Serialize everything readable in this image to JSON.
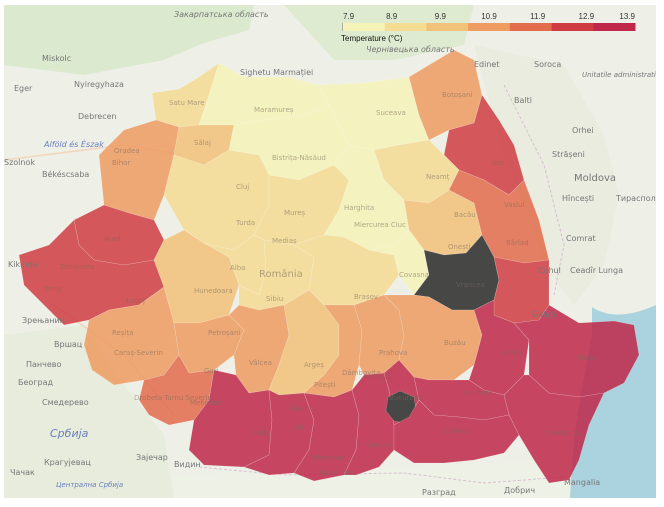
{
  "legend": {
    "title": "Temperature (°C)",
    "ticks": [
      "7.9",
      "8.9",
      "9.9",
      "10.9",
      "11.9",
      "12.9",
      "13.9"
    ],
    "colors": [
      "#f6f3b8",
      "#f5dc93",
      "#f2c27a",
      "#ee9c61",
      "#e36c4c",
      "#cf3d43",
      "#c0284a"
    ]
  },
  "map_labels": {
    "outside": [
      "Закарпатська область",
      "Чернівецька область",
      "Edinet",
      "Soroca",
      "Unitatile administrativ teritoriale din stânga Nistrului",
      "Miskolc",
      "Eger",
      "Nyiregyhaza",
      "Debrecen",
      "Alföld és Észak",
      "Békéscsaba",
      "Szolnok",
      "Kikinda",
      "Зрењанин",
      "Вршац",
      "Панчево",
      "Београд",
      "Смедерево",
      "Србија",
      "Крагујевац",
      "Чачак",
      "Централна Србија",
      "Зајечар",
      "Видин",
      "Разград",
      "Добрич",
      "Mangalia",
      "Balti",
      "Orhei",
      "Strășeni",
      "Moldova",
      "Hîncești",
      "Тираспол",
      "Comrat",
      "Cahul",
      "Ceadîr Lunga",
      "Galați",
      "Sighetu Marmației"
    ],
    "regions": [
      "Satu Mare",
      "Maramureș",
      "Suceava",
      "Botoșani",
      "Bihor",
      "Sălaj",
      "Bistrița-Năsăud",
      "Iași",
      "Cluj",
      "Neamț",
      "Vaslui",
      "Mureș",
      "Bacău",
      "Harghita",
      "Miercurea Ciuc",
      "Arad",
      "Turda",
      "Oradea",
      "Onești",
      "Bârlad",
      "Timișoara",
      "Timiș",
      "Lugoj",
      "Hunedoara",
      "România",
      "Alba",
      "Mediaș",
      "Brașov",
      "Sibiu",
      "Covasna",
      "Vrancea",
      "Reșița",
      "Caraș-Severin",
      "Petroșani",
      "Vâlcea",
      "Gorj",
      "Argeș",
      "Prahova",
      "Buzău",
      "Brăila",
      "Tulcea",
      "Mehedinți",
      "Drobeta-Turnu Severin",
      "Dolj",
      "Olt",
      "Slatina",
      "Pitești",
      "Ploiești",
      "Dâmbovița",
      "Ialomița",
      "Călărași",
      "Constanța",
      "Teleorman",
      "Giurgiu",
      "Alexandria",
      "București"
    ]
  },
  "series": {
    "name": "Temperature (°C)",
    "regions": [
      {
        "name": "Satu Mare",
        "value": 9.4
      },
      {
        "name": "Maramureș",
        "value": 8.4
      },
      {
        "name": "Botoșani",
        "value": 10.6
      },
      {
        "name": "Suceava",
        "value": 7.9
      },
      {
        "name": "Bihor",
        "value": 10.8
      },
      {
        "name": "Sălaj",
        "value": 9.7
      },
      {
        "name": "Bistrița-Năsăud",
        "value": 8.7
      },
      {
        "name": "Iași",
        "value": 12.3
      },
      {
        "name": "Cluj",
        "value": 9.6
      },
      {
        "name": "Mureș",
        "value": 9.0
      },
      {
        "name": "Harghita",
        "value": 7.9
      },
      {
        "name": "Neamț",
        "value": 8.8
      },
      {
        "name": "Bacău",
        "value": 9.8
      },
      {
        "name": "Vaslui",
        "value": 12.1
      },
      {
        "name": "Arad",
        "value": 12.4
      },
      {
        "name": "Timiș",
        "value": 12.4
      },
      {
        "name": "Hunedoara",
        "value": 10.0
      },
      {
        "name": "Alba",
        "value": 9.4
      },
      {
        "name": "Sibiu",
        "value": 9.2
      },
      {
        "name": "Brașov",
        "value": 8.8
      },
      {
        "name": "Covasna",
        "value": 8.0
      },
      {
        "name": "Vrancea",
        "value": null
      },
      {
        "name": "Galați",
        "value": 12.6
      },
      {
        "name": "Caraș-Severin",
        "value": 10.9
      },
      {
        "name": "Gorj",
        "value": 10.6
      },
      {
        "name": "Vâlcea",
        "value": 10.5
      },
      {
        "name": "Argeș",
        "value": 10.4
      },
      {
        "name": "Dâmbovița",
        "value": 11.0
      },
      {
        "name": "Prahova",
        "value": 10.6
      },
      {
        "name": "Buzău",
        "value": 11.0
      },
      {
        "name": "Brăila",
        "value": 13.1
      },
      {
        "name": "Tulcea",
        "value": 13.4
      },
      {
        "name": "Constanța",
        "value": 13.3
      },
      {
        "name": "Mehedinți",
        "value": 12.0
      },
      {
        "name": "Dolj",
        "value": 13.2
      },
      {
        "name": "Olt",
        "value": 13.2
      },
      {
        "name": "Teleorman",
        "value": 13.3
      },
      {
        "name": "Giurgiu",
        "value": 13.4
      },
      {
        "name": "Ilfov",
        "value": 13.3
      },
      {
        "name": "București",
        "value": null
      },
      {
        "name": "Ialomița",
        "value": 13.3
      },
      {
        "name": "Călărași",
        "value": 13.3
      }
    ]
  },
  "missing_color": "#2a2a2a",
  "background_colors": {
    "land": "#eef0e8",
    "water": "#aad3df"
  }
}
